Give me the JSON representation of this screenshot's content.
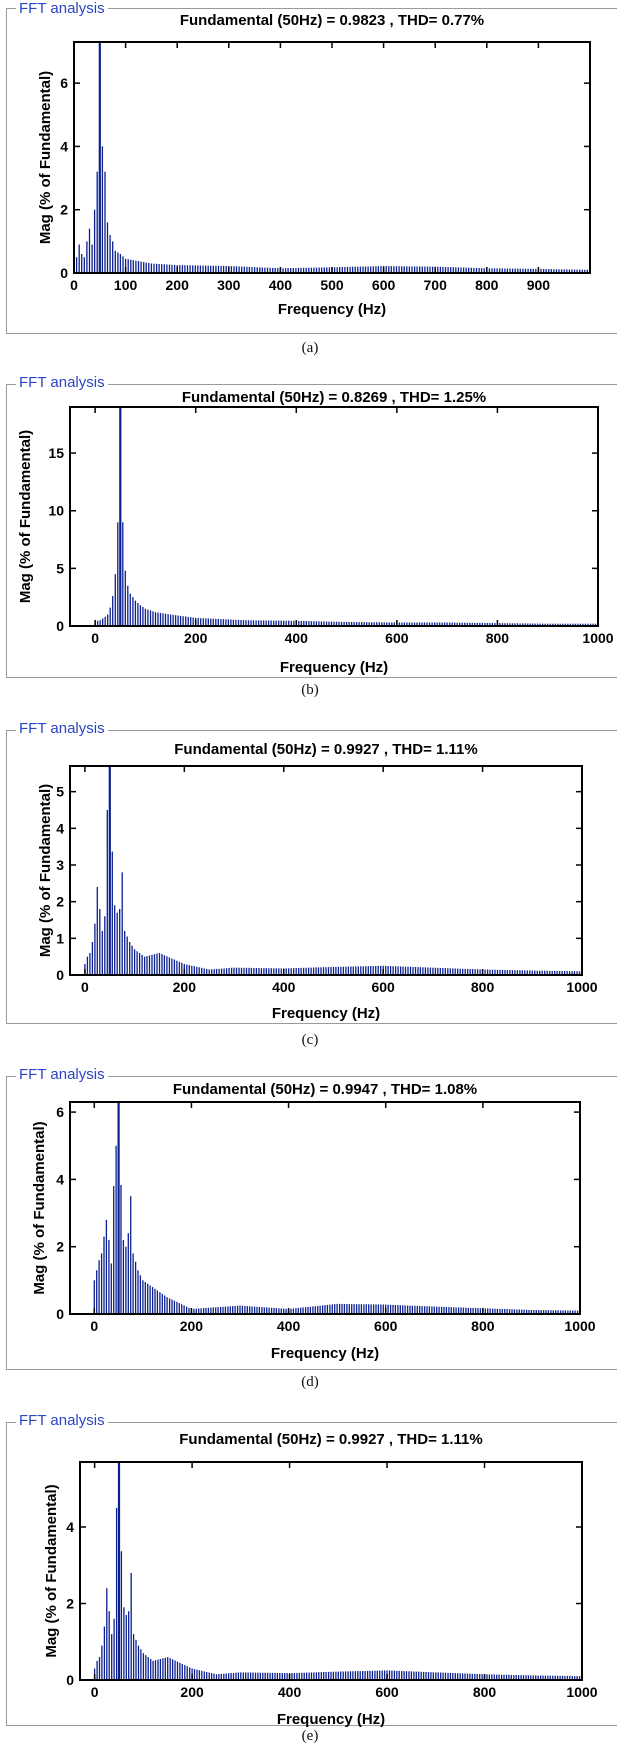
{
  "legend_label": "FFT analysis",
  "chart_data": [
    {
      "id": "a",
      "type": "bar",
      "caption": "(a)",
      "title": "Fundamental (50Hz) = 0.9823 , THD= 0.77%",
      "xlabel": "Frequency (Hz)",
      "ylabel": "Mag (% of Fundamental)",
      "xlim": [
        0,
        1000
      ],
      "ylim": [
        0,
        7.3
      ],
      "xticks": [
        0,
        100,
        200,
        300,
        400,
        500,
        600,
        700,
        800,
        900
      ],
      "yticks": [
        0,
        2,
        4,
        6
      ],
      "grid": false,
      "peaks": [
        [
          0,
          0.8
        ],
        [
          5,
          0.5
        ],
        [
          10,
          0.9
        ],
        [
          15,
          0.6
        ],
        [
          20,
          0.5
        ],
        [
          25,
          1.0
        ],
        [
          30,
          1.4
        ],
        [
          35,
          0.9
        ],
        [
          40,
          2.0
        ],
        [
          45,
          3.2
        ],
        [
          47,
          7.0
        ],
        [
          50,
          7.3
        ],
        [
          53,
          6.5
        ],
        [
          55,
          4.0
        ],
        [
          60,
          3.2
        ],
        [
          65,
          1.6
        ],
        [
          70,
          1.2
        ],
        [
          75,
          1.0
        ],
        [
          80,
          0.7
        ],
        [
          90,
          0.6
        ],
        [
          100,
          0.45
        ],
        [
          150,
          0.3
        ],
        [
          200,
          0.25
        ],
        [
          300,
          0.22
        ],
        [
          400,
          0.15
        ],
        [
          500,
          0.18
        ],
        [
          600,
          0.22
        ],
        [
          700,
          0.2
        ],
        [
          800,
          0.15
        ],
        [
          900,
          0.13
        ],
        [
          1000,
          0.1
        ]
      ]
    },
    {
      "id": "b",
      "type": "bar",
      "caption": "(b)",
      "title": "Fundamental (50Hz) = 0.8269 , THD= 1.25%",
      "xlabel": "Frequency (Hz)",
      "ylabel": "Mag (% of Fundamental)",
      "xlim": [
        -50,
        1000
      ],
      "ylim": [
        0,
        19
      ],
      "xticks": [
        0,
        200,
        400,
        600,
        800,
        1000
      ],
      "yticks": [
        0,
        5,
        10,
        15
      ],
      "grid": false,
      "peaks": [
        [
          0,
          0.4
        ],
        [
          10,
          0.5
        ],
        [
          20,
          0.8
        ],
        [
          25,
          1.0
        ],
        [
          30,
          1.6
        ],
        [
          35,
          2.6
        ],
        [
          40,
          4.5
        ],
        [
          45,
          9.0
        ],
        [
          48,
          17.5
        ],
        [
          50,
          19.0
        ],
        [
          52,
          17.5
        ],
        [
          55,
          9.0
        ],
        [
          60,
          4.8
        ],
        [
          65,
          3.5
        ],
        [
          70,
          2.8
        ],
        [
          80,
          2.2
        ],
        [
          90,
          1.8
        ],
        [
          100,
          1.5
        ],
        [
          120,
          1.2
        ],
        [
          150,
          1.0
        ],
        [
          200,
          0.7
        ],
        [
          300,
          0.5
        ],
        [
          400,
          0.45
        ],
        [
          500,
          0.35
        ],
        [
          600,
          0.3
        ],
        [
          700,
          0.3
        ],
        [
          800,
          0.25
        ],
        [
          900,
          0.2
        ],
        [
          1000,
          0.2
        ]
      ]
    },
    {
      "id": "c",
      "type": "bar",
      "caption": "(c)",
      "title": "Fundamental (50Hz) = 0.9927 , THD= 1.11%",
      "xlabel": "Frequency (Hz)",
      "ylabel": "Mag (% of Fundamental)",
      "xlim": [
        -30,
        1000
      ],
      "ylim": [
        0,
        5.7
      ],
      "xticks": [
        0,
        200,
        400,
        600,
        800,
        1000
      ],
      "yticks": [
        0,
        1,
        2,
        3,
        4,
        5
      ],
      "grid": false,
      "peaks": [
        [
          0,
          0.3
        ],
        [
          5,
          0.5
        ],
        [
          10,
          0.6
        ],
        [
          15,
          0.9
        ],
        [
          20,
          1.4
        ],
        [
          25,
          2.4
        ],
        [
          30,
          1.8
        ],
        [
          35,
          1.2
        ],
        [
          40,
          1.6
        ],
        [
          45,
          4.5
        ],
        [
          50,
          5.7
        ],
        [
          53,
          5.1
        ],
        [
          56,
          2.5
        ],
        [
          60,
          1.9
        ],
        [
          65,
          1.7
        ],
        [
          70,
          1.8
        ],
        [
          75,
          2.8
        ],
        [
          80,
          1.2
        ],
        [
          90,
          0.9
        ],
        [
          100,
          0.7
        ],
        [
          120,
          0.5
        ],
        [
          150,
          0.6
        ],
        [
          200,
          0.3
        ],
        [
          250,
          0.15
        ],
        [
          300,
          0.2
        ],
        [
          400,
          0.18
        ],
        [
          500,
          0.22
        ],
        [
          600,
          0.25
        ],
        [
          700,
          0.2
        ],
        [
          800,
          0.15
        ],
        [
          900,
          0.12
        ],
        [
          1000,
          0.1
        ]
      ]
    },
    {
      "id": "d",
      "type": "bar",
      "caption": "(d)",
      "title": "Fundamental (50Hz) = 0.9947 , THD= 1.08%",
      "xlabel": "Frequency (Hz)",
      "ylabel": "Mag (% of Fundamental)",
      "xlim": [
        -50,
        1000
      ],
      "ylim": [
        0,
        6.3
      ],
      "xticks": [
        0,
        200,
        400,
        600,
        800,
        1000
      ],
      "yticks": [
        0,
        2,
        4,
        6
      ],
      "grid": false,
      "peaks": [
        [
          0,
          1.0
        ],
        [
          5,
          1.3
        ],
        [
          10,
          1.6
        ],
        [
          15,
          1.8
        ],
        [
          20,
          2.3
        ],
        [
          25,
          2.8
        ],
        [
          30,
          2.2
        ],
        [
          35,
          1.5
        ],
        [
          40,
          3.8
        ],
        [
          45,
          5.0
        ],
        [
          50,
          6.3
        ],
        [
          53,
          5.5
        ],
        [
          56,
          3.0
        ],
        [
          60,
          2.2
        ],
        [
          65,
          2.0
        ],
        [
          70,
          2.4
        ],
        [
          75,
          3.5
        ],
        [
          80,
          1.8
        ],
        [
          90,
          1.3
        ],
        [
          100,
          1.0
        ],
        [
          120,
          0.8
        ],
        [
          150,
          0.5
        ],
        [
          200,
          0.15
        ],
        [
          300,
          0.25
        ],
        [
          400,
          0.15
        ],
        [
          500,
          0.3
        ],
        [
          600,
          0.28
        ],
        [
          700,
          0.22
        ],
        [
          800,
          0.17
        ],
        [
          900,
          0.12
        ],
        [
          1000,
          0.1
        ]
      ]
    },
    {
      "id": "e",
      "type": "bar",
      "caption": "(e)",
      "title": "Fundamental (50Hz) = 0.9927 , THD= 1.11%",
      "xlabel": "Frequency (Hz)",
      "ylabel": "Mag (% of Fundamental)",
      "xlim": [
        -30,
        1000
      ],
      "ylim": [
        0,
        5.7
      ],
      "xticks": [
        0,
        200,
        400,
        600,
        800,
        1000
      ],
      "yticks": [
        0,
        2,
        4
      ],
      "grid": false,
      "peaks": [
        [
          0,
          0.3
        ],
        [
          5,
          0.5
        ],
        [
          10,
          0.6
        ],
        [
          15,
          0.9
        ],
        [
          20,
          1.4
        ],
        [
          25,
          2.4
        ],
        [
          30,
          1.8
        ],
        [
          35,
          1.2
        ],
        [
          40,
          1.6
        ],
        [
          45,
          4.5
        ],
        [
          50,
          5.7
        ],
        [
          53,
          5.1
        ],
        [
          56,
          2.5
        ],
        [
          60,
          1.9
        ],
        [
          65,
          1.7
        ],
        [
          70,
          1.8
        ],
        [
          75,
          2.8
        ],
        [
          80,
          1.2
        ],
        [
          90,
          0.9
        ],
        [
          100,
          0.7
        ],
        [
          120,
          0.5
        ],
        [
          150,
          0.6
        ],
        [
          200,
          0.3
        ],
        [
          250,
          0.15
        ],
        [
          300,
          0.2
        ],
        [
          400,
          0.18
        ],
        [
          500,
          0.22
        ],
        [
          600,
          0.25
        ],
        [
          700,
          0.2
        ],
        [
          800,
          0.15
        ],
        [
          900,
          0.12
        ],
        [
          1000,
          0.1
        ]
      ]
    }
  ]
}
